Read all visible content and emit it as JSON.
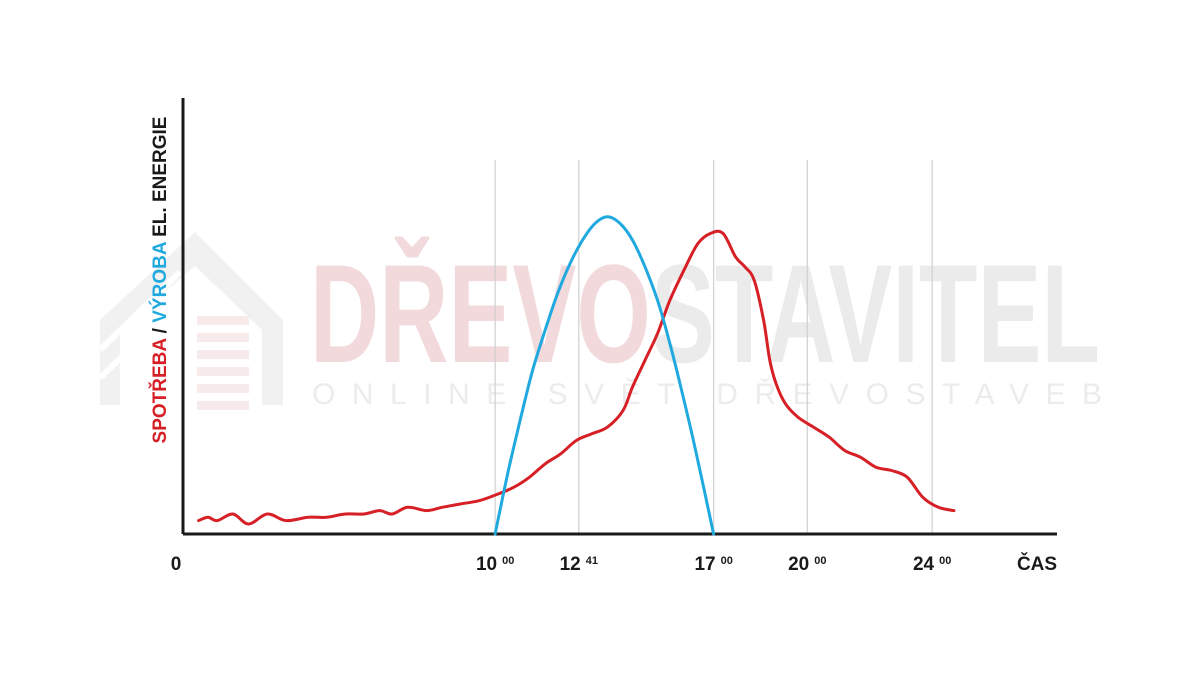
{
  "watermark": {
    "brand_part1": "DŘEVO",
    "brand_part2": "STAVITEL",
    "tagline": "ONLINE SVĚT DŘEVOSTAVEB",
    "brand_part1_color": "#f2d9db",
    "brand_part2_color": "#ebebeb"
  },
  "chart_data": {
    "type": "line",
    "ylabel": {
      "part1": "SPOTŘEBA",
      "sep": " / ",
      "part2": "VÝROBA",
      "part3": " EL. ENERGIE",
      "part1_color": "#d71f26",
      "part2_color": "#1fa9df",
      "part3_color": "#1a1a1a"
    },
    "xlabel": "ČAS",
    "origin_label": "0",
    "xlim": [
      0,
      28
    ],
    "ylim": [
      0,
      100
    ],
    "grid": "vertical",
    "ticks": [
      {
        "x": 10,
        "main": "10",
        "sup": "00"
      },
      {
        "x": 12.68,
        "main": "12",
        "sup": "41"
      },
      {
        "x": 17,
        "main": "17",
        "sup": "00"
      },
      {
        "x": 20,
        "main": "20",
        "sup": "00"
      },
      {
        "x": 24,
        "main": "24",
        "sup": "00"
      }
    ],
    "series": [
      {
        "key": "consumption",
        "color": "#d71f26",
        "points": [
          [
            0.5,
            4
          ],
          [
            0.8,
            5
          ],
          [
            1.1,
            4
          ],
          [
            1.6,
            6
          ],
          [
            2.1,
            3
          ],
          [
            2.7,
            6
          ],
          [
            3.3,
            4
          ],
          [
            4.0,
            5
          ],
          [
            4.6,
            5
          ],
          [
            5.2,
            6
          ],
          [
            5.8,
            6
          ],
          [
            6.3,
            7
          ],
          [
            6.7,
            6
          ],
          [
            7.2,
            8
          ],
          [
            7.8,
            7
          ],
          [
            8.3,
            8
          ],
          [
            8.9,
            9
          ],
          [
            9.5,
            10
          ],
          [
            10.1,
            12
          ],
          [
            10.6,
            14
          ],
          [
            11.1,
            17
          ],
          [
            11.6,
            21
          ],
          [
            12.1,
            24
          ],
          [
            12.6,
            28
          ],
          [
            13.1,
            30
          ],
          [
            13.6,
            32
          ],
          [
            14.1,
            37
          ],
          [
            14.4,
            44
          ],
          [
            14.8,
            52
          ],
          [
            15.2,
            60
          ],
          [
            15.6,
            70
          ],
          [
            16.1,
            80
          ],
          [
            16.5,
            87
          ],
          [
            16.9,
            90
          ],
          [
            17.3,
            90
          ],
          [
            17.7,
            83
          ],
          [
            18.0,
            80
          ],
          [
            18.3,
            76
          ],
          [
            18.6,
            64
          ],
          [
            18.8,
            52
          ],
          [
            19.0,
            45
          ],
          [
            19.3,
            39
          ],
          [
            19.7,
            35
          ],
          [
            20.2,
            32
          ],
          [
            20.7,
            29
          ],
          [
            21.2,
            25
          ],
          [
            21.7,
            23
          ],
          [
            22.2,
            20
          ],
          [
            22.7,
            19
          ],
          [
            23.2,
            17
          ],
          [
            23.7,
            11
          ],
          [
            24.2,
            8
          ],
          [
            24.7,
            7
          ]
        ]
      },
      {
        "key": "production",
        "color": "#1fa9df",
        "points": [
          [
            10.0,
            0
          ],
          [
            10.4,
            18
          ],
          [
            10.8,
            34
          ],
          [
            11.2,
            49
          ],
          [
            11.6,
            61
          ],
          [
            12.0,
            72
          ],
          [
            12.4,
            81
          ],
          [
            12.8,
            88
          ],
          [
            13.2,
            93
          ],
          [
            13.6,
            95
          ],
          [
            14.0,
            93
          ],
          [
            14.4,
            88
          ],
          [
            14.8,
            80
          ],
          [
            15.2,
            70
          ],
          [
            15.6,
            57
          ],
          [
            16.0,
            42
          ],
          [
            16.4,
            26
          ],
          [
            17.0,
            0
          ]
        ]
      }
    ]
  }
}
